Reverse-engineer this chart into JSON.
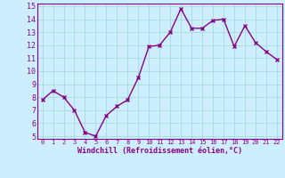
{
  "x": [
    0,
    1,
    2,
    3,
    4,
    5,
    6,
    7,
    8,
    9,
    10,
    11,
    12,
    13,
    14,
    15,
    16,
    17,
    18,
    19,
    20,
    21,
    22
  ],
  "y": [
    7.8,
    8.5,
    8.0,
    7.0,
    5.3,
    5.0,
    6.6,
    7.3,
    7.8,
    9.5,
    11.9,
    12.0,
    13.0,
    14.8,
    13.3,
    13.3,
    13.9,
    14.0,
    11.9,
    13.5,
    12.2,
    11.5,
    10.9
  ],
  "xlabel": "Windchill (Refroidissement éolien,°C)",
  "ylim": [
    5,
    15
  ],
  "xlim": [
    -0.5,
    22.5
  ],
  "yticks": [
    5,
    6,
    7,
    8,
    9,
    10,
    11,
    12,
    13,
    14,
    15
  ],
  "xticks": [
    0,
    1,
    2,
    3,
    4,
    5,
    6,
    7,
    8,
    9,
    10,
    11,
    12,
    13,
    14,
    15,
    16,
    17,
    18,
    19,
    20,
    21,
    22
  ],
  "line_color": "#880088",
  "marker_color": "#880088",
  "bg_color": "#cceeff",
  "grid_color": "#aadddd",
  "axis_label_color": "#880088",
  "tick_label_color": "#880088",
  "spine_color": "#880088"
}
